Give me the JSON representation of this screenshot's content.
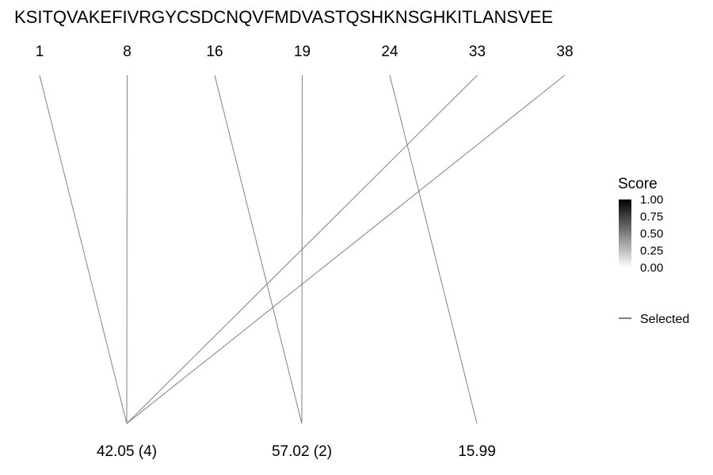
{
  "chart_data": {
    "type": "line",
    "sequence": "KSITQVAKEFIVRGYCSDCNQVFMDVASTQSHKNSGHKITLANSVEE",
    "positions": [
      "1",
      "8",
      "16",
      "19",
      "24",
      "33",
      "38"
    ],
    "masses": [
      "42.05 (4)",
      "57.02 (2)",
      "15.99"
    ],
    "links": [
      {
        "position": "1",
        "mass": "42.05 (4)"
      },
      {
        "position": "8",
        "mass": "42.05 (4)"
      },
      {
        "position": "33",
        "mass": "42.05 (4)"
      },
      {
        "position": "38",
        "mass": "42.05 (4)"
      },
      {
        "position": "16",
        "mass": "57.02 (2)"
      },
      {
        "position": "19",
        "mass": "57.02 (2)"
      },
      {
        "position": "24",
        "mass": "15.99"
      }
    ],
    "legend": {
      "score_title": "Score",
      "score_ticks": [
        "1.00",
        "0.75",
        "0.50",
        "0.25",
        "0.00"
      ],
      "selected_label": "Selected"
    },
    "line_color": "#808080"
  }
}
